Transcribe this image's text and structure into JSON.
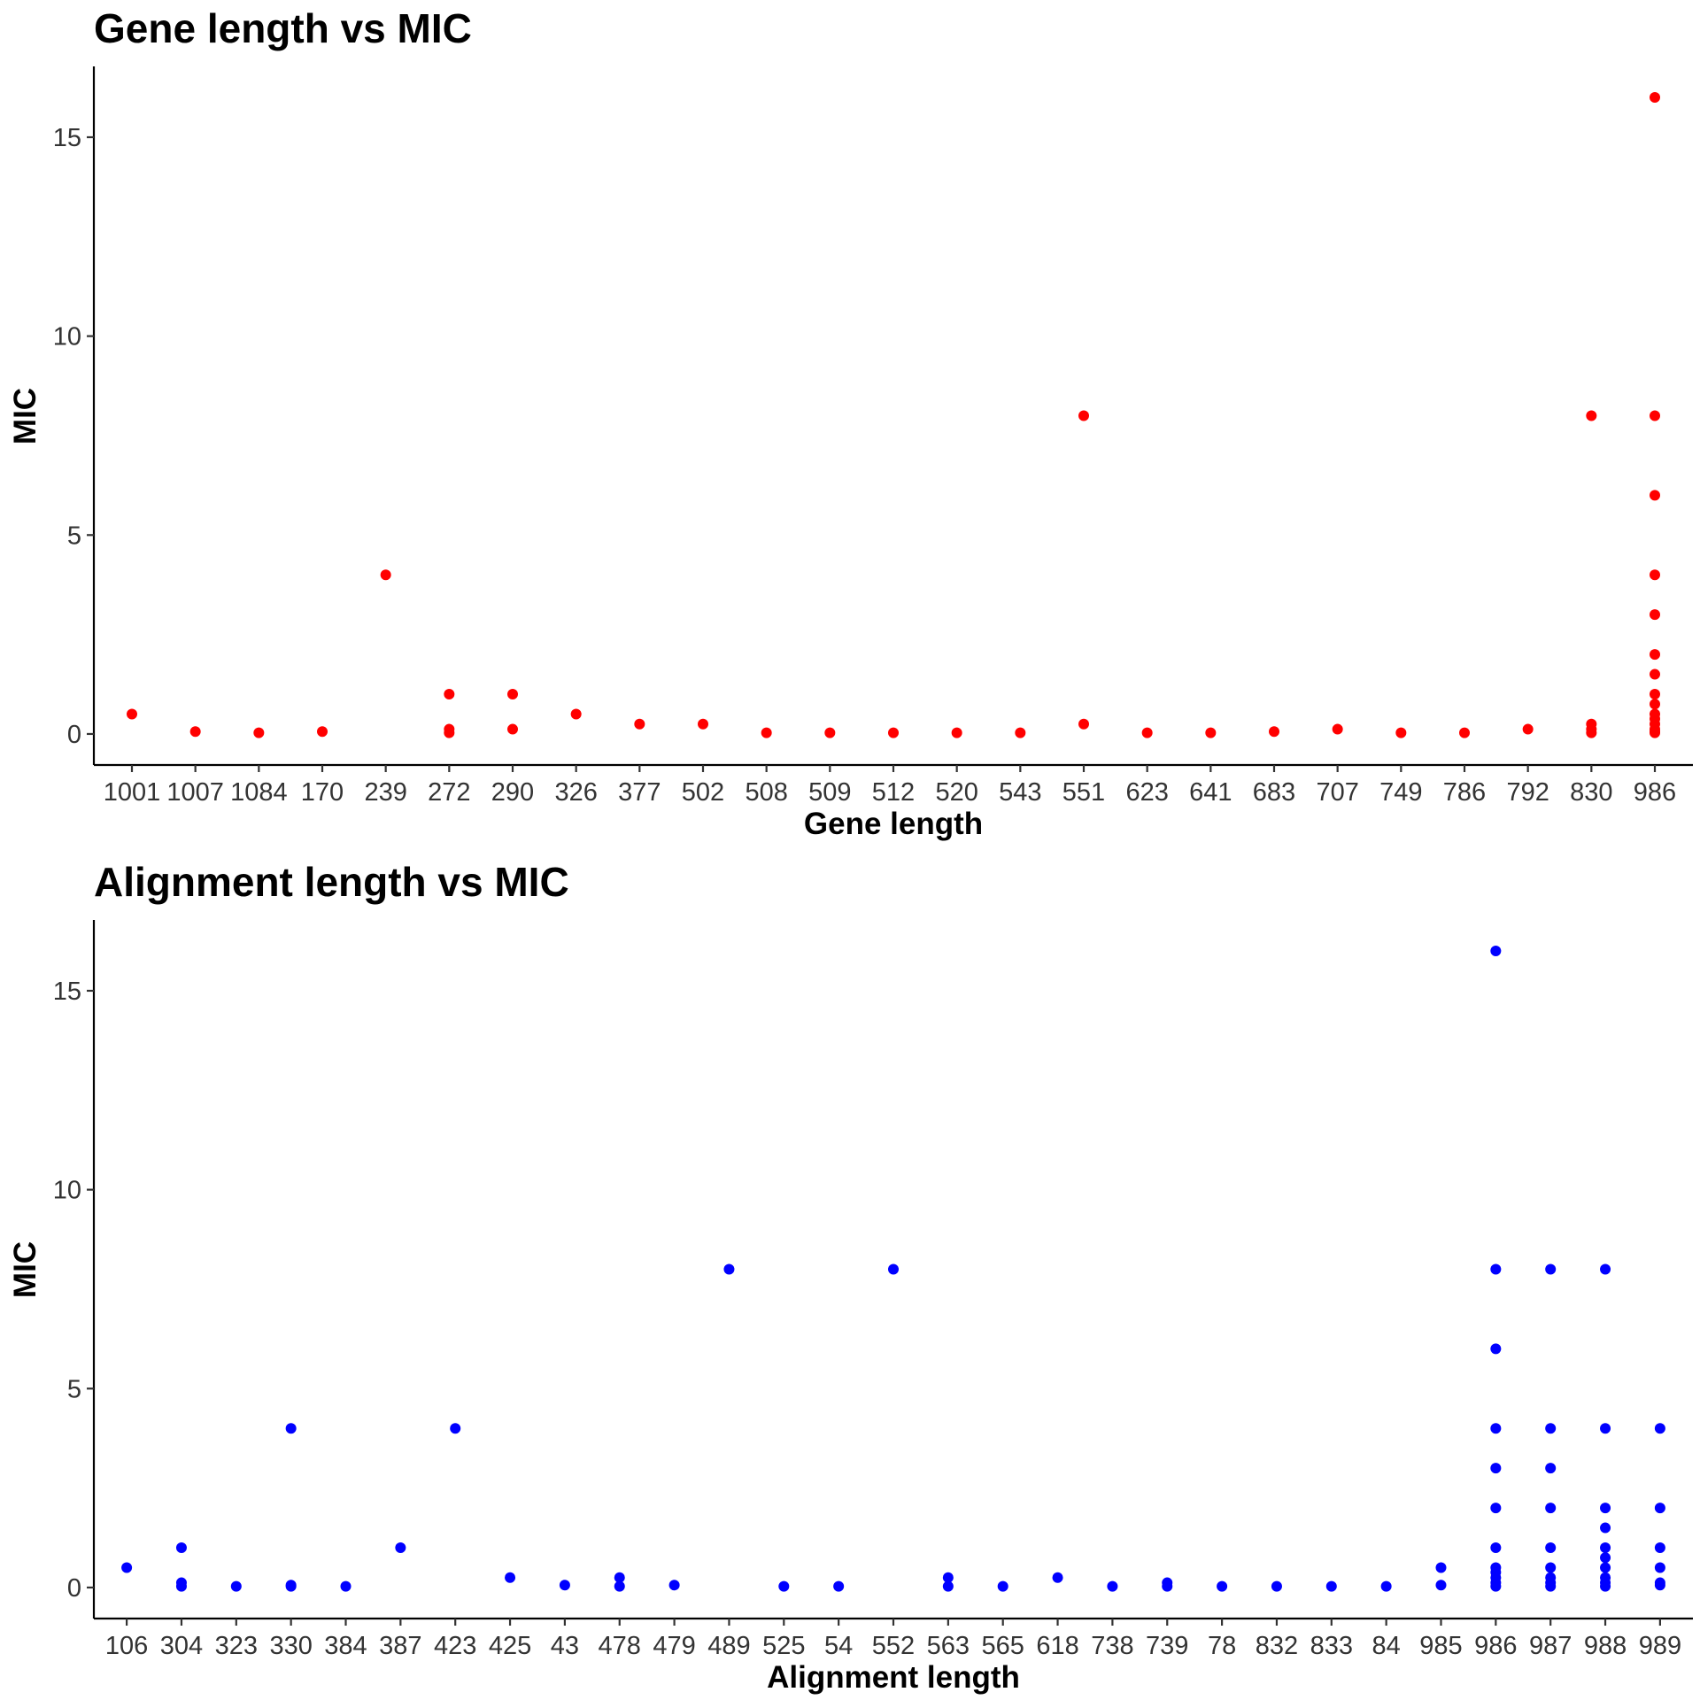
{
  "chart_data": [
    {
      "type": "scatter",
      "title": "Gene length vs MIC",
      "xlabel": "Gene length",
      "ylabel": "MIC",
      "x_scale": "categorical",
      "categories": [
        "1001",
        "1007",
        "1084",
        "170",
        "239",
        "272",
        "290",
        "326",
        "377",
        "502",
        "508",
        "509",
        "512",
        "520",
        "543",
        "551",
        "623",
        "641",
        "683",
        "707",
        "749",
        "786",
        "792",
        "830",
        "986"
      ],
      "y_ticks": [
        0,
        5,
        10,
        15
      ],
      "ylim": [
        -0.78,
        16.78
      ],
      "grid": false,
      "legend": "none",
      "color": "#ff0000",
      "points": [
        {
          "x": "1001",
          "y": 0.5
        },
        {
          "x": "1007",
          "y": 0.06
        },
        {
          "x": "1084",
          "y": 0.03
        },
        {
          "x": "170",
          "y": 0.06
        },
        {
          "x": "239",
          "y": 4
        },
        {
          "x": "272",
          "y": 1
        },
        {
          "x": "272",
          "y": 0.12
        },
        {
          "x": "272",
          "y": 0.03
        },
        {
          "x": "290",
          "y": 1
        },
        {
          "x": "290",
          "y": 0.12
        },
        {
          "x": "326",
          "y": 0.5
        },
        {
          "x": "377",
          "y": 0.25
        },
        {
          "x": "502",
          "y": 0.25
        },
        {
          "x": "508",
          "y": 0.03
        },
        {
          "x": "509",
          "y": 0.03
        },
        {
          "x": "512",
          "y": 0.03
        },
        {
          "x": "520",
          "y": 0.03
        },
        {
          "x": "543",
          "y": 0.03
        },
        {
          "x": "551",
          "y": 8
        },
        {
          "x": "551",
          "y": 0.25
        },
        {
          "x": "623",
          "y": 0.03
        },
        {
          "x": "641",
          "y": 0.03
        },
        {
          "x": "683",
          "y": 0.06
        },
        {
          "x": "707",
          "y": 0.12
        },
        {
          "x": "749",
          "y": 0.03
        },
        {
          "x": "786",
          "y": 0.03
        },
        {
          "x": "792",
          "y": 0.12
        },
        {
          "x": "830",
          "y": 8
        },
        {
          "x": "830",
          "y": 0.25
        },
        {
          "x": "830",
          "y": 0.12
        },
        {
          "x": "830",
          "y": 0.03
        },
        {
          "x": "986",
          "y": 16
        },
        {
          "x": "986",
          "y": 8
        },
        {
          "x": "986",
          "y": 6
        },
        {
          "x": "986",
          "y": 4
        },
        {
          "x": "986",
          "y": 3
        },
        {
          "x": "986",
          "y": 2
        },
        {
          "x": "986",
          "y": 1.5
        },
        {
          "x": "986",
          "y": 1
        },
        {
          "x": "986",
          "y": 0.75
        },
        {
          "x": "986",
          "y": 0.5
        },
        {
          "x": "986",
          "y": 0.38
        },
        {
          "x": "986",
          "y": 0.25
        },
        {
          "x": "986",
          "y": 0.12
        },
        {
          "x": "986",
          "y": 0.06
        },
        {
          "x": "986",
          "y": 0.03
        }
      ]
    },
    {
      "type": "scatter",
      "title": "Alignment length vs MIC",
      "xlabel": "Alignment length",
      "ylabel": "MIC",
      "x_scale": "categorical",
      "categories": [
        "106",
        "304",
        "323",
        "330",
        "384",
        "387",
        "423",
        "425",
        "43",
        "478",
        "479",
        "489",
        "525",
        "54",
        "552",
        "563",
        "565",
        "618",
        "738",
        "739",
        "78",
        "832",
        "833",
        "84",
        "985",
        "986",
        "987",
        "988",
        "989"
      ],
      "y_ticks": [
        0,
        5,
        10,
        15
      ],
      "ylim": [
        -0.78,
        16.78
      ],
      "grid": false,
      "legend": "none",
      "color": "#0000ff",
      "points": [
        {
          "x": "106",
          "y": 0.5
        },
        {
          "x": "304",
          "y": 1
        },
        {
          "x": "304",
          "y": 0.12
        },
        {
          "x": "304",
          "y": 0.03
        },
        {
          "x": "323",
          "y": 0.03
        },
        {
          "x": "330",
          "y": 4
        },
        {
          "x": "330",
          "y": 0.06
        },
        {
          "x": "330",
          "y": 0.03
        },
        {
          "x": "384",
          "y": 0.03
        },
        {
          "x": "387",
          "y": 1
        },
        {
          "x": "423",
          "y": 4
        },
        {
          "x": "425",
          "y": 0.25
        },
        {
          "x": "43",
          "y": 0.06
        },
        {
          "x": "478",
          "y": 0.25
        },
        {
          "x": "478",
          "y": 0.03
        },
        {
          "x": "479",
          "y": 0.06
        },
        {
          "x": "489",
          "y": 8
        },
        {
          "x": "525",
          "y": 0.03
        },
        {
          "x": "54",
          "y": 0.03
        },
        {
          "x": "552",
          "y": 8
        },
        {
          "x": "563",
          "y": 0.25
        },
        {
          "x": "563",
          "y": 0.03
        },
        {
          "x": "565",
          "y": 0.03
        },
        {
          "x": "618",
          "y": 0.25
        },
        {
          "x": "738",
          "y": 0.03
        },
        {
          "x": "739",
          "y": 0.12
        },
        {
          "x": "739",
          "y": 0.03
        },
        {
          "x": "78",
          "y": 0.03
        },
        {
          "x": "832",
          "y": 0.03
        },
        {
          "x": "833",
          "y": 0.03
        },
        {
          "x": "84",
          "y": 0.03
        },
        {
          "x": "985",
          "y": 0.5
        },
        {
          "x": "985",
          "y": 0.06
        },
        {
          "x": "986",
          "y": 16
        },
        {
          "x": "986",
          "y": 8
        },
        {
          "x": "986",
          "y": 6
        },
        {
          "x": "986",
          "y": 4
        },
        {
          "x": "986",
          "y": 3
        },
        {
          "x": "986",
          "y": 2
        },
        {
          "x": "986",
          "y": 1
        },
        {
          "x": "986",
          "y": 0.5
        },
        {
          "x": "986",
          "y": 0.38
        },
        {
          "x": "986",
          "y": 0.25
        },
        {
          "x": "986",
          "y": 0.12
        },
        {
          "x": "986",
          "y": 0.03
        },
        {
          "x": "987",
          "y": 8
        },
        {
          "x": "987",
          "y": 4
        },
        {
          "x": "987",
          "y": 3
        },
        {
          "x": "987",
          "y": 2
        },
        {
          "x": "987",
          "y": 1
        },
        {
          "x": "987",
          "y": 0.5
        },
        {
          "x": "987",
          "y": 0.25
        },
        {
          "x": "987",
          "y": 0.12
        },
        {
          "x": "987",
          "y": 0.03
        },
        {
          "x": "988",
          "y": 8
        },
        {
          "x": "988",
          "y": 4
        },
        {
          "x": "988",
          "y": 2
        },
        {
          "x": "988",
          "y": 1.5
        },
        {
          "x": "988",
          "y": 1
        },
        {
          "x": "988",
          "y": 0.75
        },
        {
          "x": "988",
          "y": 0.5
        },
        {
          "x": "988",
          "y": 0.25
        },
        {
          "x": "988",
          "y": 0.12
        },
        {
          "x": "988",
          "y": 0.03
        },
        {
          "x": "989",
          "y": 4
        },
        {
          "x": "989",
          "y": 2
        },
        {
          "x": "989",
          "y": 1
        },
        {
          "x": "989",
          "y": 0.5
        },
        {
          "x": "989",
          "y": 0.12
        },
        {
          "x": "989",
          "y": 0.06
        }
      ]
    }
  ]
}
